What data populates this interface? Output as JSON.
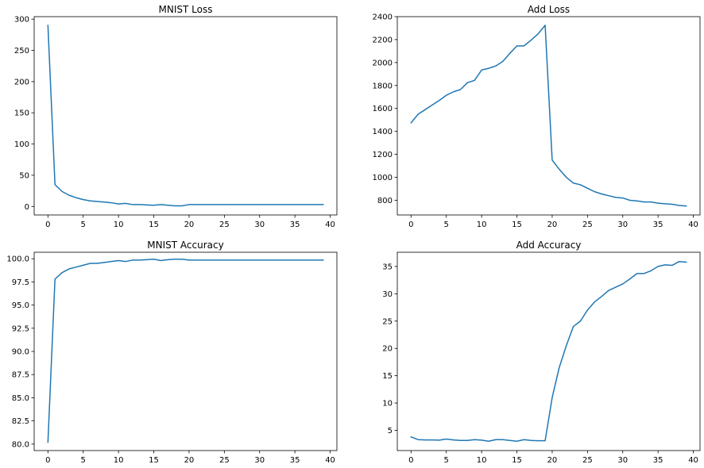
{
  "chart_data": [
    {
      "type": "line",
      "title": "MNIST Loss",
      "xlabel": "",
      "ylabel": "",
      "xlim": [
        -1.95,
        40.95
      ],
      "ylim": [
        -13.6,
        304.0
      ],
      "xticks": [
        0,
        5,
        10,
        15,
        20,
        25,
        30,
        35,
        40
      ],
      "yticks": [
        0,
        50,
        100,
        150,
        200,
        250,
        300
      ],
      "ytick_labels": [
        "0",
        "50",
        "100",
        "150",
        "200",
        "250",
        "300"
      ],
      "series": [
        {
          "color": "#1f77b4",
          "x": [
            0,
            1,
            2,
            3,
            4,
            5,
            6,
            7,
            8,
            9,
            10,
            11,
            12,
            13,
            14,
            15,
            16,
            17,
            18,
            19,
            20,
            21,
            22,
            23,
            24,
            25,
            26,
            27,
            28,
            29,
            30,
            31,
            32,
            33,
            34,
            35,
            36,
            37,
            38,
            39
          ],
          "values": [
            290,
            35,
            24,
            18,
            14,
            11,
            9,
            8,
            7,
            6,
            4,
            5,
            3,
            3,
            2.5,
            2,
            3,
            2,
            1,
            1,
            3,
            3,
            3,
            3,
            3,
            3,
            3,
            3,
            3,
            3,
            3,
            3,
            3,
            3,
            3,
            3,
            3,
            3,
            3,
            3
          ]
        }
      ]
    },
    {
      "type": "line",
      "title": "Add Loss",
      "xlabel": "",
      "ylabel": "",
      "xlim": [
        -1.95,
        40.95
      ],
      "ylim": [
        672,
        2400
      ],
      "xticks": [
        0,
        5,
        10,
        15,
        20,
        25,
        30,
        35,
        40
      ],
      "yticks": [
        800,
        1000,
        1200,
        1400,
        1600,
        1800,
        2000,
        2200,
        2400
      ],
      "ytick_labels": [
        "800",
        "1000",
        "1200",
        "1400",
        "1600",
        "1800",
        "2000",
        "2200",
        "2400"
      ],
      "series": [
        {
          "color": "#1f77b4",
          "x": [
            0,
            1,
            2,
            3,
            4,
            5,
            6,
            7,
            8,
            9,
            10,
            11,
            12,
            13,
            14,
            15,
            16,
            17,
            18,
            19,
            20,
            21,
            22,
            23,
            24,
            25,
            26,
            27,
            28,
            29,
            30,
            31,
            32,
            33,
            34,
            35,
            36,
            37,
            38,
            39
          ],
          "values": [
            1475,
            1550,
            1590,
            1630,
            1670,
            1715,
            1745,
            1765,
            1825,
            1845,
            1935,
            1950,
            1970,
            2010,
            2080,
            2145,
            2145,
            2195,
            2250,
            2325,
            1150,
            1070,
            1000,
            950,
            935,
            905,
            875,
            855,
            840,
            825,
            820,
            800,
            795,
            785,
            785,
            775,
            770,
            765,
            755,
            750
          ]
        }
      ]
    },
    {
      "type": "line",
      "title": "MNIST Accuracy",
      "xlabel": "",
      "ylabel": "",
      "xlim": [
        -1.95,
        40.95
      ],
      "ylim": [
        79.3,
        100.7
      ],
      "xticks": [
        0,
        5,
        10,
        15,
        20,
        25,
        30,
        35,
        40
      ],
      "yticks": [
        80.0,
        82.5,
        85.0,
        87.5,
        90.0,
        92.5,
        95.0,
        97.5,
        100.0
      ],
      "ytick_labels": [
        "80.0",
        "82.5",
        "85.0",
        "87.5",
        "90.0",
        "92.5",
        "95.0",
        "97.5",
        "100.0"
      ],
      "series": [
        {
          "color": "#1f77b4",
          "x": [
            0,
            1,
            2,
            3,
            4,
            5,
            6,
            7,
            8,
            9,
            10,
            11,
            12,
            13,
            14,
            15,
            16,
            17,
            18,
            19,
            20,
            21,
            22,
            23,
            24,
            25,
            26,
            27,
            28,
            29,
            30,
            31,
            32,
            33,
            34,
            35,
            36,
            37,
            38,
            39
          ],
          "values": [
            80.2,
            97.8,
            98.5,
            98.9,
            99.1,
            99.3,
            99.5,
            99.5,
            99.6,
            99.7,
            99.8,
            99.7,
            99.85,
            99.85,
            99.9,
            99.95,
            99.8,
            99.9,
            99.95,
            99.95,
            99.85,
            99.85,
            99.85,
            99.85,
            99.85,
            99.85,
            99.85,
            99.85,
            99.85,
            99.85,
            99.85,
            99.85,
            99.85,
            99.85,
            99.85,
            99.85,
            99.85,
            99.85,
            99.85,
            99.85
          ]
        }
      ]
    },
    {
      "type": "line",
      "title": "Add Accuracy",
      "xlabel": "",
      "ylabel": "",
      "xlim": [
        -1.95,
        40.95
      ],
      "ylim": [
        1.3,
        37.6
      ],
      "xticks": [
        0,
        5,
        10,
        15,
        20,
        25,
        30,
        35,
        40
      ],
      "yticks": [
        5,
        10,
        15,
        20,
        25,
        30,
        35
      ],
      "ytick_labels": [
        "5",
        "10",
        "15",
        "20",
        "25",
        "30",
        "35"
      ],
      "series": [
        {
          "color": "#1f77b4",
          "x": [
            0,
            1,
            2,
            3,
            4,
            5,
            6,
            7,
            8,
            9,
            10,
            11,
            12,
            13,
            14,
            15,
            16,
            17,
            18,
            19,
            20,
            21,
            22,
            23,
            24,
            25,
            26,
            27,
            28,
            29,
            30,
            31,
            32,
            33,
            34,
            35,
            36,
            37,
            38,
            39
          ],
          "values": [
            3.8,
            3.3,
            3.25,
            3.25,
            3.2,
            3.4,
            3.25,
            3.15,
            3.15,
            3.3,
            3.2,
            3.0,
            3.3,
            3.3,
            3.15,
            3.0,
            3.3,
            3.15,
            3.1,
            3.1,
            11.0,
            16.5,
            20.5,
            24.0,
            25.0,
            27.0,
            28.5,
            29.5,
            30.6,
            31.2,
            31.8,
            32.7,
            33.7,
            33.7,
            34.2,
            35.0,
            35.3,
            35.2,
            35.9,
            35.8
          ]
        }
      ]
    }
  ]
}
